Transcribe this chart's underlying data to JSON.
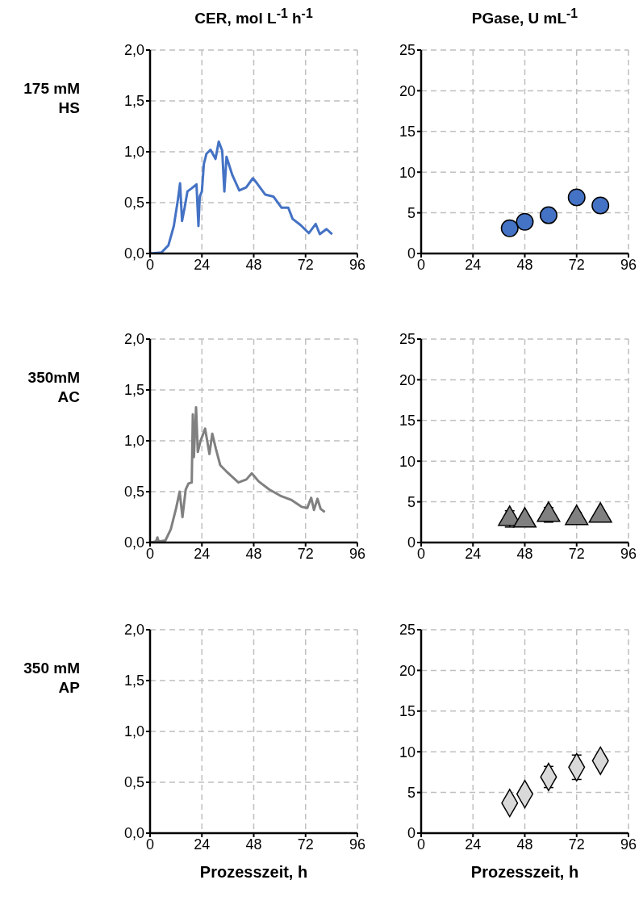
{
  "chart_data": [
    {
      "type": "line",
      "title": "CER, mol L$^{-1}$ h$^{-1}$",
      "ylabel": "175 mM HS",
      "xlim": [
        0,
        96
      ],
      "xticks": [
        0,
        24,
        48,
        72,
        96
      ],
      "ylim": [
        0,
        2
      ],
      "yticks": [
        {
          "value": 0,
          "label": "0,0"
        },
        {
          "value": 0.5,
          "label": "0,5"
        },
        {
          "value": 1,
          "label": "1,0"
        },
        {
          "value": 1.5,
          "label": "1,5"
        },
        {
          "value": 2,
          "label": "2,0"
        }
      ],
      "grid": true,
      "marker": "none",
      "line_style": "solid",
      "series": [
        {
          "color": "#4472c4",
          "x": [
            0,
            5.3,
            8.5,
            11,
            12.9,
            13.9,
            14.8,
            16,
            17.3,
            19.2,
            21.5,
            22.4,
            23,
            24,
            24.9,
            26.1,
            28,
            30.3,
            31.8,
            33.4,
            34.4,
            35.4,
            38.1,
            41.3,
            44.5,
            47.6,
            49.5,
            53.3,
            57.1,
            60.9,
            64,
            66,
            69.7,
            73.5,
            76.7,
            78.6,
            81.7,
            84.3
          ],
          "values": [
            0,
            0.01,
            0.08,
            0.27,
            0.53,
            0.69,
            0.32,
            0.45,
            0.61,
            0.64,
            0.68,
            0.27,
            0.56,
            0.61,
            0.88,
            0.98,
            1.02,
            0.93,
            1.1,
            1.01,
            0.61,
            0.95,
            0.77,
            0.62,
            0.65,
            0.74,
            0.69,
            0.58,
            0.56,
            0.45,
            0.45,
            0.34,
            0.28,
            0.2,
            0.29,
            0.19,
            0.24,
            0.19
          ]
        }
      ]
    },
    {
      "type": "scatter",
      "title": "PGase, U mL$^{-1}$",
      "xlim": [
        0,
        96
      ],
      "xticks": [
        0,
        24,
        48,
        72,
        96
      ],
      "ylim": [
        0,
        25
      ],
      "yticks": [
        0,
        5,
        10,
        15,
        20,
        25
      ],
      "grid": true,
      "marker": "circle",
      "series": [
        {
          "color": "#4472c4",
          "x": [
            41,
            48,
            59,
            72,
            83
          ],
          "values": [
            3.1,
            3.9,
            4.7,
            6.9,
            5.9
          ]
        }
      ]
    },
    {
      "type": "line",
      "ylabel": "350mM AC",
      "xlim": [
        0,
        96
      ],
      "xticks": [
        0,
        24,
        48,
        72,
        96
      ],
      "ylim": [
        0,
        2
      ],
      "yticks": [
        {
          "value": 0,
          "label": "0,0"
        },
        {
          "value": 0.5,
          "label": "0,5"
        },
        {
          "value": 1,
          "label": "1,0"
        },
        {
          "value": 1.5,
          "label": "1,5"
        },
        {
          "value": 2,
          "label": "2,0"
        }
      ],
      "grid": true,
      "marker": "none",
      "line_style": "solid",
      "series": [
        {
          "color": "#808080",
          "x": [
            0,
            2.7,
            3.4,
            4,
            7.1,
            9.6,
            12.1,
            13.7,
            15,
            16.5,
            17.8,
            19.3,
            19.8,
            20.3,
            21.3,
            22.1,
            23.4,
            25.5,
            27.5,
            28.8,
            30.5,
            32.5,
            35.3,
            40.9,
            44.6,
            47.1,
            50.3,
            55.3,
            60.3,
            65.3,
            70.3,
            72.8,
            74.6,
            75.9,
            77.5,
            79,
            80.9
          ],
          "values": [
            0,
            0.01,
            0.05,
            0.01,
            0.02,
            0.13,
            0.34,
            0.5,
            0.25,
            0.52,
            0.58,
            0.59,
            1.26,
            0.84,
            1.33,
            0.89,
            1.0,
            1.12,
            0.87,
            1.07,
            0.92,
            0.76,
            0.7,
            0.59,
            0.62,
            0.68,
            0.6,
            0.52,
            0.46,
            0.42,
            0.35,
            0.34,
            0.44,
            0.32,
            0.43,
            0.33,
            0.3
          ]
        }
      ]
    },
    {
      "type": "scatter",
      "xlim": [
        0,
        96
      ],
      "xticks": [
        0,
        24,
        48,
        72,
        96
      ],
      "ylim": [
        0,
        25
      ],
      "yticks": [
        0,
        5,
        10,
        15,
        20,
        25
      ],
      "grid": true,
      "marker": "triangle",
      "series": [
        {
          "color": "#808080",
          "x": [
            41,
            48,
            59,
            72,
            83
          ],
          "values": [
            2.9,
            2.7,
            3.4,
            3.0,
            3.3
          ],
          "errors": [
            1.0,
            0.6,
            0.9,
            0.7,
            null
          ]
        }
      ]
    },
    {
      "type": "line",
      "ylabel": "350 mM AP",
      "xlabel": "Prozesszeit, h",
      "xlim": [
        0,
        96
      ],
      "xticks": [
        0,
        24,
        48,
        72,
        96
      ],
      "ylim": [
        0,
        2
      ],
      "yticks": [
        {
          "value": 0,
          "label": "0,0"
        },
        {
          "value": 0.5,
          "label": "0,5"
        },
        {
          "value": 1,
          "label": "1,0"
        },
        {
          "value": 1.5,
          "label": "1,5"
        },
        {
          "value": 2,
          "label": "2,0"
        }
      ],
      "grid": true
    },
    {
      "type": "scatter",
      "xlabel": "Prozesszeit, h",
      "xlim": [
        0,
        96
      ],
      "xticks": [
        0,
        24,
        48,
        72,
        96
      ],
      "ylim": [
        0,
        25
      ],
      "yticks": [
        0,
        5,
        10,
        15,
        20,
        25
      ],
      "grid": true,
      "marker": "diamond",
      "series": [
        {
          "color": "#d9d9d9",
          "x": [
            41,
            48,
            59,
            72,
            83
          ],
          "values": [
            3.7,
            4.8,
            6.9,
            8.1,
            8.9
          ],
          "errors": [
            null,
            null,
            1.3,
            1.5,
            null
          ]
        }
      ]
    }
  ]
}
